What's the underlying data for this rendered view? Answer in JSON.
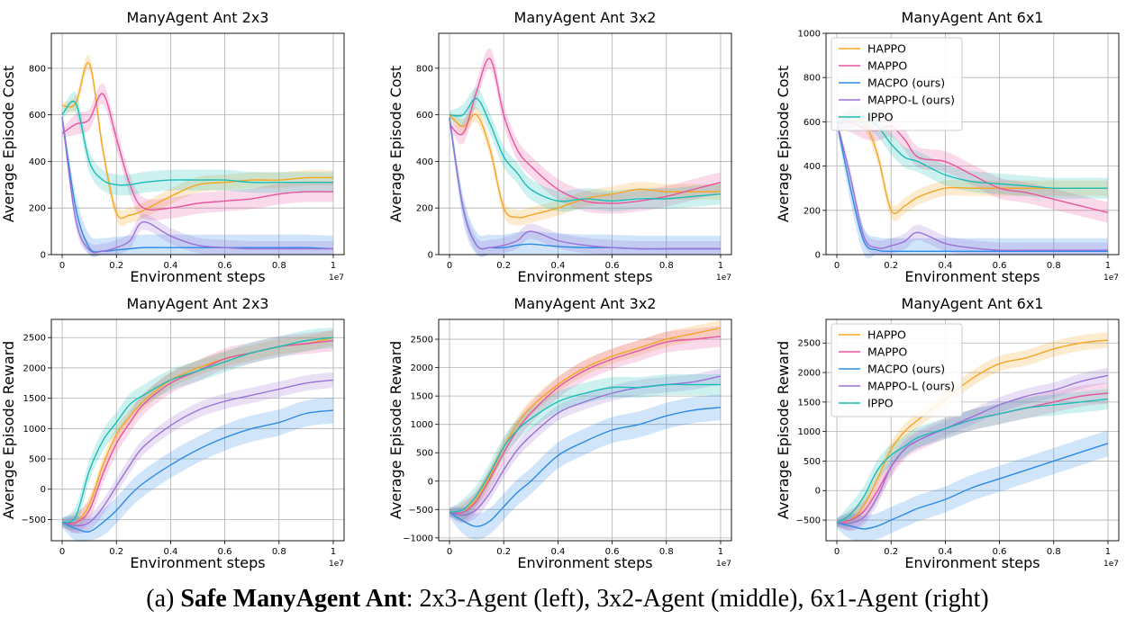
{
  "caption": {
    "prefix": "(a) ",
    "bold": "Safe ManyAgent Ant",
    "rest": ": 2x3-Agent (left), 3x2-Agent (middle), 6x1-Agent (right)"
  },
  "legend_labels": [
    "HAPPO",
    "MAPPO",
    "MACPO (ours)",
    "MAPPO-L (ours)",
    "IPPO"
  ],
  "colors": {
    "HAPPO": "#f5a623",
    "MAPPO": "#e8559e",
    "MACPO (ours)": "#2b8ae6",
    "MAPPO-L (ours)": "#9b72d6",
    "IPPO": "#1bbdb7"
  },
  "chart_data": [
    {
      "type": "line",
      "title": "ManyAgent Ant 2x3",
      "xlabel": "Environment steps",
      "ylabel": "Average Episode Cost",
      "xlim": [
        0,
        1
      ],
      "ylim": [
        0,
        950
      ],
      "x_ticks": [
        0.0,
        0.2,
        0.4,
        0.6,
        0.8,
        1.0
      ],
      "y_ticks": [
        0,
        200,
        400,
        600,
        800
      ],
      "x_exponent": "1e7",
      "legend": false,
      "x": [
        0,
        0.05,
        0.1,
        0.15,
        0.2,
        0.25,
        0.3,
        0.4,
        0.5,
        0.6,
        0.7,
        0.8,
        0.9,
        1.0
      ],
      "series": [
        {
          "name": "HAPPO",
          "values": [
            640,
            650,
            820,
            450,
            180,
            170,
            190,
            250,
            300,
            310,
            320,
            320,
            330,
            330
          ]
        },
        {
          "name": "MAPPO",
          "values": [
            520,
            560,
            580,
            690,
            500,
            300,
            200,
            200,
            220,
            230,
            240,
            260,
            270,
            270
          ]
        },
        {
          "name": "MACPO (ours)",
          "values": [
            590,
            200,
            30,
            15,
            20,
            25,
            30,
            30,
            30,
            30,
            30,
            30,
            30,
            25
          ]
        },
        {
          "name": "MAPPO-L (ours)",
          "values": [
            590,
            150,
            20,
            15,
            30,
            60,
            140,
            80,
            40,
            30,
            25,
            25,
            25,
            25
          ]
        },
        {
          "name": "IPPO",
          "values": [
            600,
            650,
            400,
            320,
            300,
            300,
            310,
            320,
            320,
            320,
            310,
            310,
            310,
            310
          ]
        }
      ]
    },
    {
      "type": "line",
      "title": "ManyAgent Ant 3x2",
      "xlabel": "Environment steps",
      "ylabel": "Average Episode Cost",
      "xlim": [
        0,
        1
      ],
      "ylim": [
        0,
        950
      ],
      "x_ticks": [
        0.0,
        0.2,
        0.4,
        0.6,
        0.8,
        1.0
      ],
      "y_ticks": [
        0,
        200,
        400,
        600,
        800
      ],
      "x_exponent": "1e7",
      "legend": false,
      "x": [
        0,
        0.05,
        0.1,
        0.15,
        0.2,
        0.25,
        0.3,
        0.4,
        0.5,
        0.6,
        0.7,
        0.8,
        0.9,
        1.0
      ],
      "series": [
        {
          "name": "HAPPO",
          "values": [
            600,
            550,
            600,
            450,
            200,
            160,
            170,
            200,
            240,
            260,
            280,
            270,
            270,
            270
          ]
        },
        {
          "name": "MAPPO",
          "values": [
            560,
            520,
            700,
            840,
            600,
            450,
            380,
            280,
            230,
            220,
            230,
            250,
            280,
            310
          ]
        },
        {
          "name": "MACPO (ours)",
          "values": [
            590,
            200,
            40,
            30,
            30,
            40,
            45,
            35,
            30,
            30,
            25,
            25,
            25,
            25
          ]
        },
        {
          "name": "MAPPO-L (ours)",
          "values": [
            580,
            200,
            40,
            30,
            40,
            60,
            100,
            60,
            40,
            30,
            25,
            25,
            25,
            25
          ]
        },
        {
          "name": "IPPO",
          "values": [
            600,
            600,
            670,
            560,
            420,
            350,
            280,
            230,
            240,
            230,
            240,
            240,
            250,
            260
          ]
        }
      ]
    },
    {
      "type": "line",
      "title": "ManyAgent Ant 6x1",
      "xlabel": "Environment steps",
      "ylabel": "Average Episode Cost",
      "xlim": [
        0,
        1
      ],
      "ylim": [
        0,
        1000
      ],
      "x_ticks": [
        0.0,
        0.2,
        0.4,
        0.6,
        0.8,
        1.0
      ],
      "y_ticks": [
        0,
        200,
        400,
        600,
        800,
        1000
      ],
      "x_exponent": "1e7",
      "legend": true,
      "x": [
        0,
        0.05,
        0.1,
        0.15,
        0.2,
        0.25,
        0.3,
        0.4,
        0.5,
        0.6,
        0.7,
        0.8,
        0.9,
        1.0
      ],
      "series": [
        {
          "name": "HAPPO",
          "values": [
            620,
            620,
            600,
            450,
            200,
            220,
            260,
            300,
            300,
            300,
            300,
            300,
            300,
            300
          ]
        },
        {
          "name": "MAPPO",
          "values": [
            590,
            600,
            570,
            560,
            580,
            520,
            440,
            420,
            360,
            300,
            280,
            250,
            220,
            190
          ]
        },
        {
          "name": "MACPO (ours)",
          "values": [
            600,
            300,
            60,
            20,
            15,
            15,
            15,
            15,
            15,
            15,
            15,
            15,
            15,
            15
          ]
        },
        {
          "name": "MAPPO-L (ours)",
          "values": [
            600,
            350,
            80,
            30,
            40,
            60,
            100,
            50,
            30,
            20,
            20,
            20,
            20,
            20
          ]
        },
        {
          "name": "IPPO",
          "values": [
            590,
            620,
            620,
            580,
            500,
            440,
            420,
            360,
            330,
            320,
            310,
            300,
            300,
            300
          ]
        }
      ]
    },
    {
      "type": "line",
      "title": "ManyAgent Ant 2x3",
      "xlabel": "Environment steps",
      "ylabel": "Average Episode Reward",
      "xlim": [
        0,
        1
      ],
      "ylim": [
        -850,
        2800
      ],
      "x_ticks": [
        0.0,
        0.2,
        0.4,
        0.6,
        0.8,
        1.0
      ],
      "y_ticks": [
        -500,
        0,
        500,
        1000,
        1500,
        2000,
        2500
      ],
      "x_exponent": "1e7",
      "legend": false,
      "x": [
        0,
        0.05,
        0.1,
        0.15,
        0.2,
        0.25,
        0.3,
        0.4,
        0.5,
        0.6,
        0.7,
        0.8,
        0.9,
        1.0
      ],
      "series": [
        {
          "name": "HAPPO",
          "values": [
            -550,
            -550,
            -250,
            400,
            900,
            1200,
            1450,
            1800,
            2000,
            2150,
            2250,
            2350,
            2400,
            2500
          ]
        },
        {
          "name": "MAPPO",
          "values": [
            -550,
            -550,
            -350,
            250,
            750,
            1100,
            1400,
            1750,
            1950,
            2150,
            2250,
            2350,
            2400,
            2450
          ]
        },
        {
          "name": "MACPO (ours)",
          "values": [
            -550,
            -650,
            -700,
            -550,
            -350,
            -100,
            100,
            400,
            650,
            850,
            1000,
            1100,
            1250,
            1300
          ]
        },
        {
          "name": "MAPPO-L (ours)",
          "values": [
            -550,
            -600,
            -550,
            -300,
            50,
            400,
            700,
            1050,
            1300,
            1450,
            1550,
            1650,
            1750,
            1800
          ]
        },
        {
          "name": "IPPO",
          "values": [
            -550,
            -450,
            300,
            800,
            1100,
            1400,
            1550,
            1800,
            1950,
            2100,
            2250,
            2350,
            2450,
            2500
          ]
        }
      ]
    },
    {
      "type": "line",
      "title": "ManyAgent Ant 3x2",
      "xlabel": "Environment steps",
      "ylabel": "Average Episode Reward",
      "xlim": [
        0,
        1
      ],
      "ylim": [
        -1050,
        2850
      ],
      "x_ticks": [
        0.0,
        0.2,
        0.4,
        0.6,
        0.8,
        1.0
      ],
      "y_ticks": [
        -1000,
        -500,
        0,
        500,
        1000,
        1500,
        2000,
        2500
      ],
      "x_exponent": "1e7",
      "legend": false,
      "x": [
        0,
        0.05,
        0.1,
        0.15,
        0.2,
        0.25,
        0.3,
        0.4,
        0.5,
        0.6,
        0.7,
        0.8,
        0.9,
        1.0
      ],
      "series": [
        {
          "name": "HAPPO",
          "values": [
            -550,
            -550,
            -300,
            100,
            600,
            1000,
            1300,
            1700,
            2000,
            2200,
            2350,
            2500,
            2600,
            2700
          ]
        },
        {
          "name": "MAPPO",
          "values": [
            -550,
            -550,
            -350,
            50,
            500,
            900,
            1200,
            1650,
            1950,
            2150,
            2300,
            2450,
            2500,
            2550
          ]
        },
        {
          "name": "MACPO (ours)",
          "values": [
            -550,
            -700,
            -800,
            -700,
            -450,
            -200,
            0,
            450,
            700,
            900,
            1000,
            1150,
            1250,
            1300
          ]
        },
        {
          "name": "MAPPO-L (ours)",
          "values": [
            -550,
            -600,
            -500,
            -200,
            200,
            550,
            800,
            1200,
            1400,
            1550,
            1650,
            1700,
            1750,
            1850
          ]
        },
        {
          "name": "IPPO",
          "values": [
            -550,
            -500,
            -250,
            150,
            600,
            900,
            1100,
            1400,
            1550,
            1650,
            1650,
            1700,
            1700,
            1700
          ]
        }
      ]
    },
    {
      "type": "line",
      "title": "ManyAgent Ant 6x1",
      "xlabel": "Environment steps",
      "ylabel": "Average Episode Reward",
      "xlim": [
        0,
        1
      ],
      "ylim": [
        -850,
        2900
      ],
      "x_ticks": [
        0.0,
        0.2,
        0.4,
        0.6,
        0.8,
        1.0
      ],
      "y_ticks": [
        -500,
        0,
        500,
        1000,
        1500,
        2000,
        2500
      ],
      "x_exponent": "1e7",
      "legend": true,
      "x": [
        0,
        0.05,
        0.1,
        0.15,
        0.2,
        0.25,
        0.3,
        0.4,
        0.5,
        0.6,
        0.7,
        0.8,
        0.9,
        1.0
      ],
      "series": [
        {
          "name": "HAPPO",
          "values": [
            -550,
            -500,
            -250,
            200,
            700,
            1000,
            1200,
            1550,
            1900,
            2150,
            2250,
            2400,
            2500,
            2550
          ]
        },
        {
          "name": "MAPPO",
          "values": [
            -550,
            -500,
            -350,
            0,
            400,
            700,
            850,
            1050,
            1200,
            1300,
            1400,
            1500,
            1600,
            1650
          ]
        },
        {
          "name": "MACPO (ours)",
          "values": [
            -550,
            -600,
            -650,
            -600,
            -500,
            -400,
            -300,
            -150,
            50,
            200,
            350,
            500,
            650,
            800
          ]
        },
        {
          "name": "MAPPO-L (ours)",
          "values": [
            -550,
            -550,
            -450,
            -100,
            400,
            700,
            850,
            1050,
            1250,
            1450,
            1600,
            1700,
            1850,
            1950
          ]
        },
        {
          "name": "IPPO",
          "values": [
            -550,
            -400,
            -100,
            350,
            600,
            750,
            900,
            1050,
            1200,
            1300,
            1400,
            1450,
            1500,
            1550
          ]
        }
      ]
    }
  ]
}
